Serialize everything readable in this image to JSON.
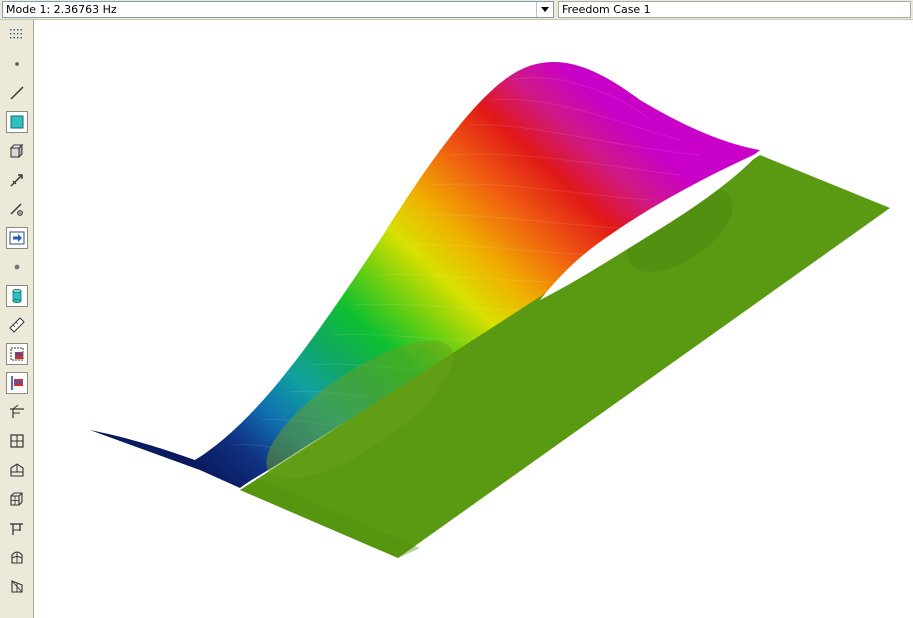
{
  "topbar": {
    "mode_label": "Mode 1: 2.36763 Hz",
    "freedom_case": "Freedom Case 1"
  },
  "toolbar": {
    "tools": [
      {
        "name": "grid-dots-icon"
      },
      {
        "name": "node-icon"
      },
      {
        "name": "beam-icon"
      },
      {
        "name": "plate-icon"
      },
      {
        "name": "brick-icon"
      },
      {
        "name": "link-icon"
      },
      {
        "name": "pipe-icon"
      },
      {
        "name": "arrow-tool-icon"
      },
      {
        "name": "point-icon"
      },
      {
        "name": "cylinder-icon"
      },
      {
        "name": "ruler-icon"
      },
      {
        "name": "select-region-icon"
      },
      {
        "name": "flag-icon"
      },
      {
        "name": "mesh-beam-icon"
      },
      {
        "name": "mesh-grid-icon"
      },
      {
        "name": "extrude-icon"
      },
      {
        "name": "cube-mesh-icon"
      },
      {
        "name": "frame-icon"
      },
      {
        "name": "shell-icon"
      },
      {
        "name": "cut-icon"
      }
    ]
  },
  "colors": {
    "toolbar_bg": "#ece9d8",
    "plate_green": "#5a9a12",
    "accent_teal": "#2fc0c0"
  },
  "viewport": {
    "model": "deformed-plate-mode-shape"
  }
}
